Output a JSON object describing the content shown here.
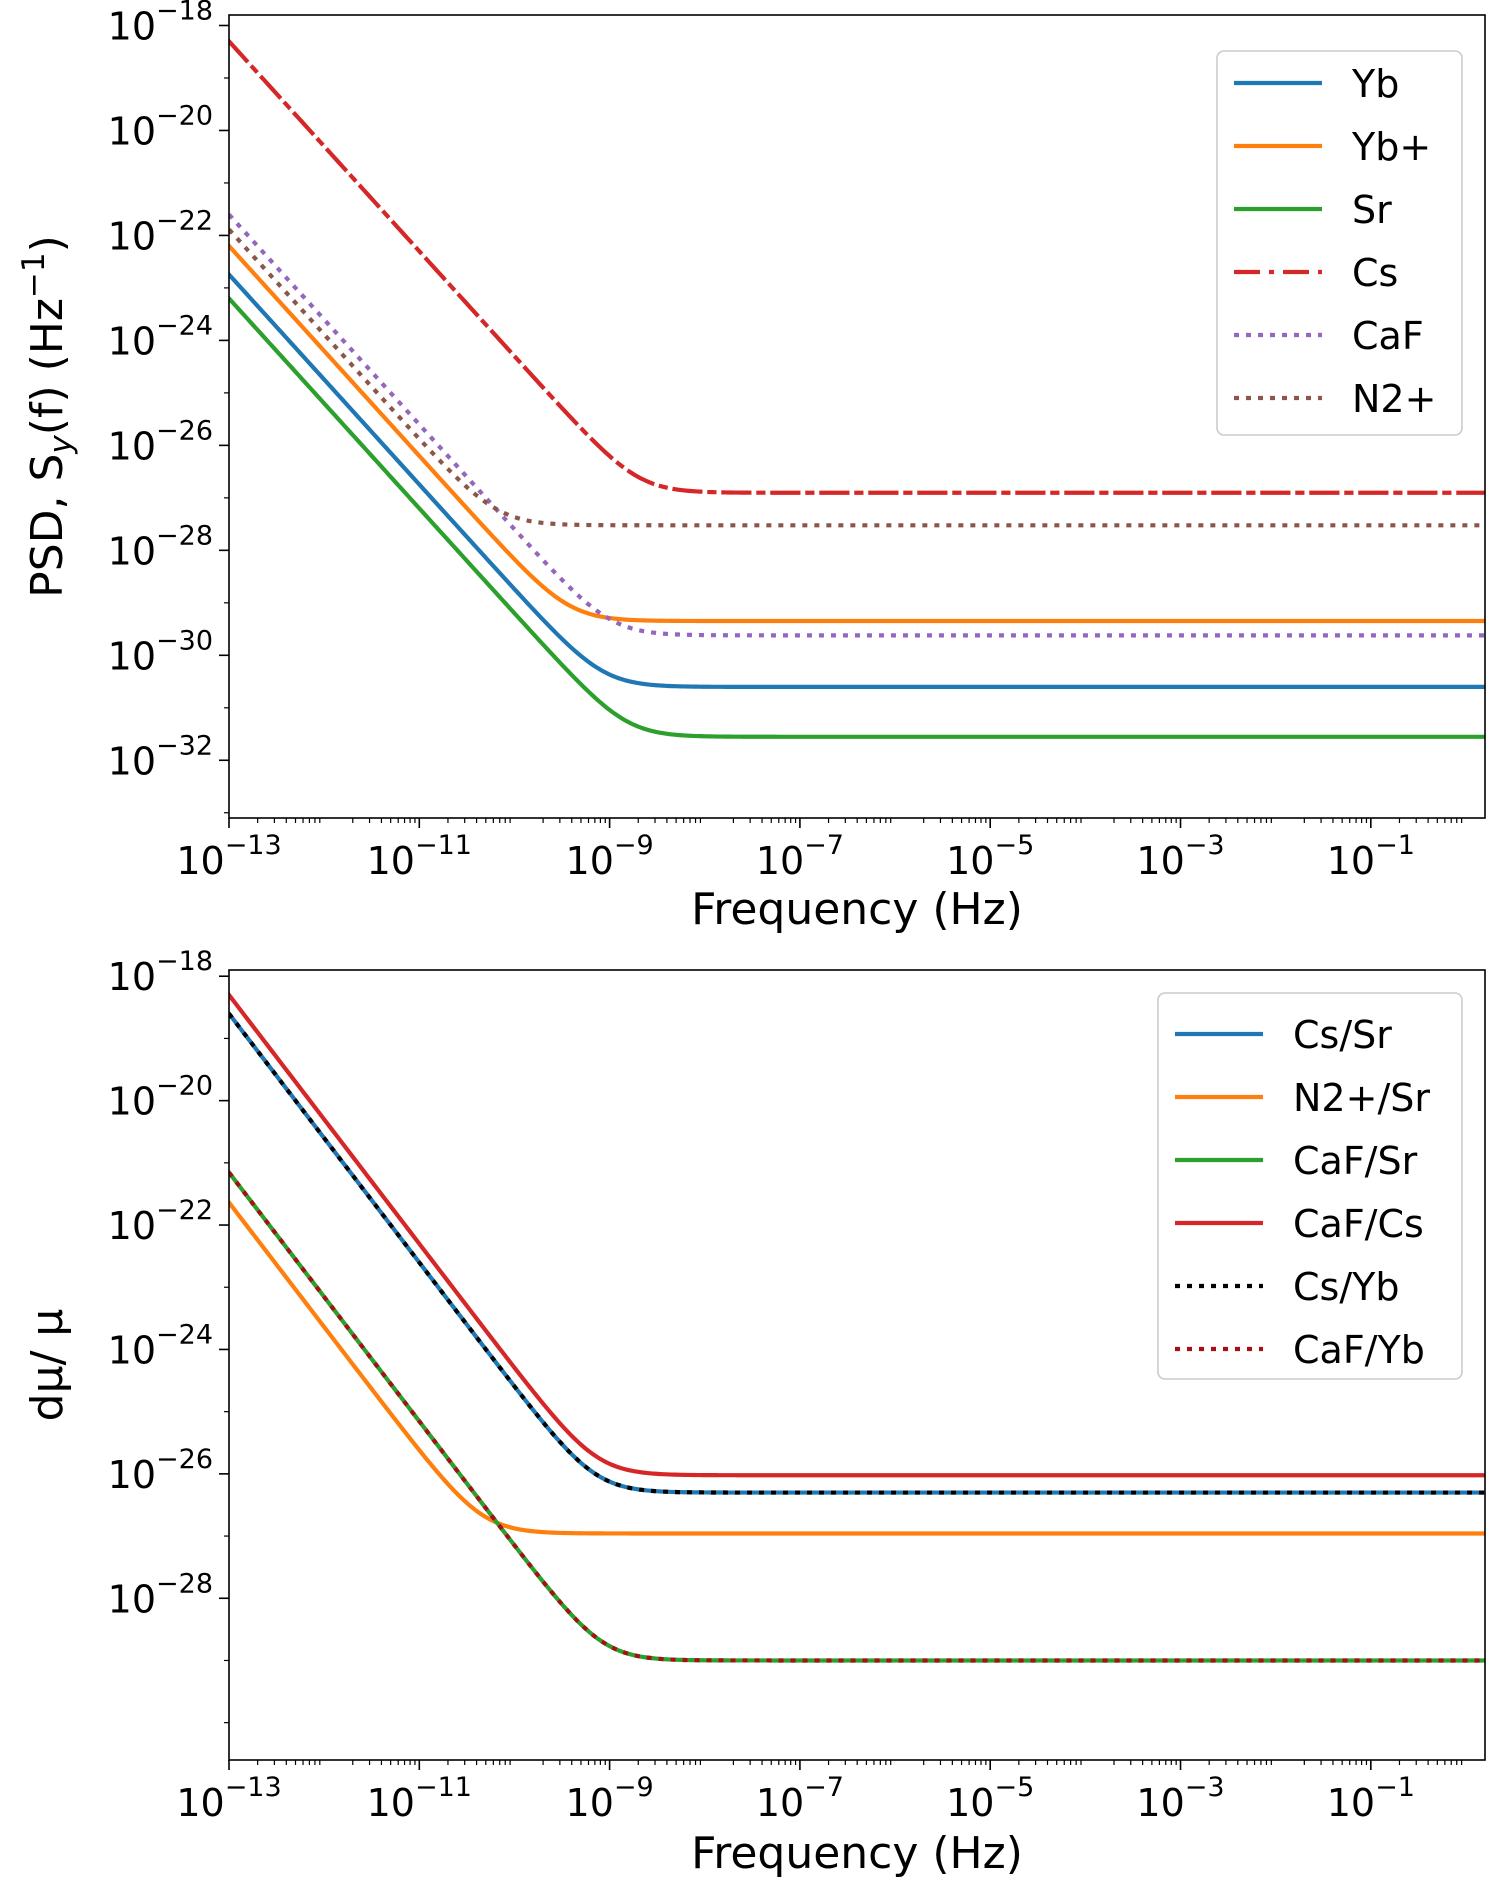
{
  "chart_data": [
    {
      "type": "line",
      "id": "psd",
      "title": "",
      "xlabel": "Frequency (Hz)",
      "ylabel": "PSD, S",
      "ylabel_sub": "y",
      "ylabel_tail": "(f) (Hz",
      "ylabel_exp": "−1",
      "ylabel_close": ")",
      "xscale": "log",
      "yscale": "log",
      "xlim_log10": [
        -13,
        0.2
      ],
      "ylim_log10": [
        -33.1,
        -17.8
      ],
      "xticks": [
        {
          "base": "10",
          "exp": "−13",
          "log": -13
        },
        {
          "base": "10",
          "exp": "−11",
          "log": -11
        },
        {
          "base": "10",
          "exp": "−9",
          "log": -9
        },
        {
          "base": "10",
          "exp": "−7",
          "log": -7
        },
        {
          "base": "10",
          "exp": "−5",
          "log": -5
        },
        {
          "base": "10",
          "exp": "−3",
          "log": -3
        },
        {
          "base": "10",
          "exp": "−1",
          "log": -1
        }
      ],
      "yticks": [
        {
          "base": "10",
          "exp": "−18",
          "log": -18
        },
        {
          "base": "10",
          "exp": "−20",
          "log": -20
        },
        {
          "base": "10",
          "exp": "−22",
          "log": -22
        },
        {
          "base": "10",
          "exp": "−24",
          "log": -24
        },
        {
          "base": "10",
          "exp": "−26",
          "log": -26
        },
        {
          "base": "10",
          "exp": "−28",
          "log": -28
        },
        {
          "base": "10",
          "exp": "−30",
          "log": -30
        },
        {
          "base": "10",
          "exp": "−32",
          "log": -32
        }
      ],
      "legend_position": "top-right",
      "model": "log10 S(f) = log10( A·f^-2 + B ), values from x = 1e-13 Hz to 1.58 Hz",
      "series": [
        {
          "name": "Yb",
          "color": "#1f77b4",
          "dash": "solid",
          "value_at_1e-13": 1.8e-23,
          "plateau": 2.5e-31
        },
        {
          "name": "Yb+",
          "color": "#ff7f0e",
          "dash": "solid",
          "value_at_1e-13": 6.3e-23,
          "plateau": 4.5e-30
        },
        {
          "name": "Sr",
          "color": "#2ca02c",
          "dash": "solid",
          "value_at_1e-13": 6.3e-24,
          "plateau": 2.8e-32
        },
        {
          "name": "Cs",
          "color": "#d62728",
          "dash": "dashdot",
          "value_at_1e-13": 5e-19,
          "plateau": 1.25e-27
        },
        {
          "name": "CaF",
          "color": "#9467bd",
          "dash": "dotted",
          "value_at_1e-13": 2.5e-22,
          "plateau": 2.4e-30
        },
        {
          "name": "N2+",
          "color": "#8c564b",
          "dash": "dotted",
          "value_at_1e-13": 1.3e-22,
          "plateau": 3e-28
        }
      ]
    },
    {
      "type": "line",
      "id": "dmu",
      "title": "",
      "xlabel": "Frequency (Hz)",
      "ylabel": "dμ/ μ",
      "xscale": "log",
      "yscale": "log",
      "xlim_log10": [
        -13,
        0.2
      ],
      "ylim_log10": [
        -30.6,
        -17.9
      ],
      "xticks": [
        {
          "base": "10",
          "exp": "−13",
          "log": -13
        },
        {
          "base": "10",
          "exp": "−11",
          "log": -11
        },
        {
          "base": "10",
          "exp": "−9",
          "log": -9
        },
        {
          "base": "10",
          "exp": "−7",
          "log": -7
        },
        {
          "base": "10",
          "exp": "−5",
          "log": -5
        },
        {
          "base": "10",
          "exp": "−3",
          "log": -3
        },
        {
          "base": "10",
          "exp": "−1",
          "log": -1
        }
      ],
      "yticks": [
        {
          "base": "10",
          "exp": "−18",
          "log": -18
        },
        {
          "base": "10",
          "exp": "−20",
          "log": -20
        },
        {
          "base": "10",
          "exp": "−22",
          "log": -22
        },
        {
          "base": "10",
          "exp": "−24",
          "log": -24
        },
        {
          "base": "10",
          "exp": "−26",
          "log": -26
        },
        {
          "base": "10",
          "exp": "−28",
          "log": -28
        }
      ],
      "legend_position": "top-right",
      "model": "log10 y(f) = log10( A·f^-2 + B ), values from x = 1e-13 Hz to 1.58 Hz",
      "series": [
        {
          "name": "Cs/Sr",
          "color": "#1f77b4",
          "dash": "solid",
          "value_at_1e-13": 2.5e-19,
          "plateau": 5e-27
        },
        {
          "name": "N2+/Sr",
          "color": "#ff7f0e",
          "dash": "solid",
          "value_at_1e-13": 2.3e-22,
          "plateau": 1.1e-27
        },
        {
          "name": "CaF/Sr",
          "color": "#2ca02c",
          "dash": "solid",
          "value_at_1e-13": 7e-22,
          "plateau": 1e-29
        },
        {
          "name": "CaF/Cs",
          "color": "#d62728",
          "dash": "solid",
          "value_at_1e-13": 5e-19,
          "plateau": 9.5e-27
        },
        {
          "name": "Cs/Yb",
          "color": "#000000",
          "dash": "dotted",
          "value_at_1e-13": 2.5e-19,
          "plateau": 5e-27
        },
        {
          "name": "CaF/Yb",
          "color": "#a50f15",
          "dash": "dotted",
          "value_at_1e-13": 7e-22,
          "plateau": 1e-29
        }
      ]
    }
  ]
}
